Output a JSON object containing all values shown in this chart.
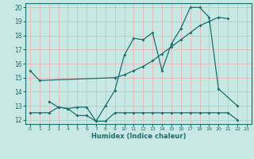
{
  "xlabel": "Humidex (Indice chaleur)",
  "xlim": [
    -0.5,
    23.5
  ],
  "ylim": [
    11.7,
    20.3
  ],
  "yticks": [
    12,
    13,
    14,
    15,
    16,
    17,
    18,
    19,
    20
  ],
  "xticks": [
    0,
    1,
    2,
    3,
    4,
    5,
    6,
    7,
    8,
    9,
    10,
    11,
    12,
    13,
    14,
    15,
    16,
    17,
    18,
    19,
    20,
    21,
    22,
    23
  ],
  "bg_color": "#c8e8e4",
  "grid_color": "#e8b8b8",
  "line_color": "#1a6e6e",
  "line1_x": [
    0,
    1,
    9,
    10,
    11,
    12,
    13,
    14,
    15,
    16,
    17,
    18,
    19,
    20,
    21
  ],
  "line1_y": [
    15.5,
    14.8,
    15.0,
    15.2,
    15.5,
    15.8,
    16.2,
    16.7,
    17.2,
    17.7,
    18.2,
    18.7,
    19.0,
    19.3,
    19.2
  ],
  "line2_x": [
    2,
    3,
    4,
    5,
    6,
    7,
    8,
    9,
    10,
    11,
    12,
    13,
    14,
    15,
    16,
    17,
    18,
    19,
    20,
    22
  ],
  "line2_y": [
    13.3,
    12.9,
    12.8,
    12.9,
    12.9,
    11.9,
    13.0,
    14.1,
    16.6,
    17.8,
    17.7,
    18.2,
    15.5,
    17.4,
    18.5,
    20.0,
    20.0,
    19.3,
    14.2,
    13.0
  ],
  "line3_x": [
    0,
    1,
    2,
    3,
    4,
    5,
    6,
    7,
    8,
    9,
    10,
    11,
    12,
    13,
    14,
    15,
    16,
    17,
    18,
    19,
    20,
    21,
    22
  ],
  "line3_y": [
    12.5,
    12.5,
    12.5,
    12.9,
    12.8,
    12.3,
    12.3,
    11.9,
    11.9,
    12.5,
    12.5,
    12.5,
    12.5,
    12.5,
    12.5,
    12.5,
    12.5,
    12.5,
    12.5,
    12.5,
    12.5,
    12.5,
    12.0
  ]
}
